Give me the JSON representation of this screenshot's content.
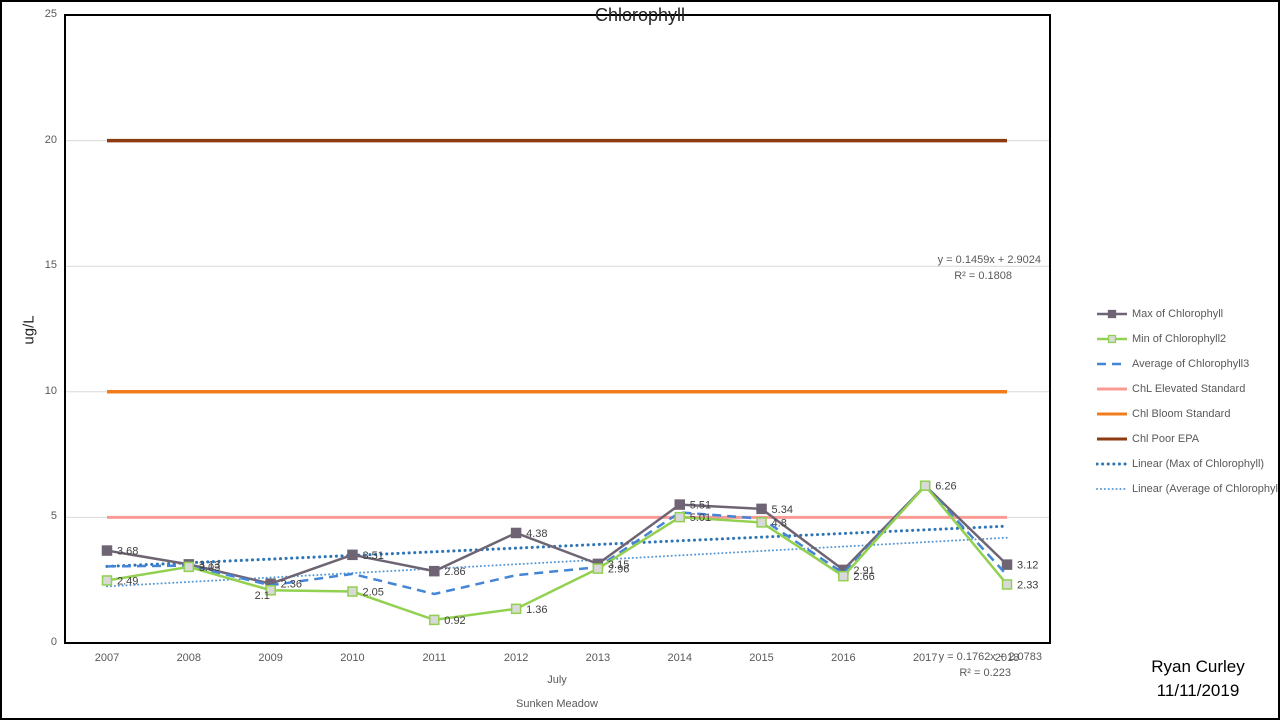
{
  "title": "Chlorophyll",
  "y_axis": {
    "title": "ug/L"
  },
  "x_axis": {
    "group_label": "July",
    "axis_title": "Sunken Meadow"
  },
  "annotations": {
    "max_trend_eq": "y = 0.1459x + 2.9024",
    "max_trend_r2": "R² = 0.1808",
    "avg_trend_eq": "y = 0.1762x + 2.0783",
    "avg_trend_r2": "R² = 0.223"
  },
  "signature": {
    "name": "Ryan Curley",
    "date": "11/11/2019"
  },
  "colors": {
    "max_series": "#6F6473",
    "min_series": "#92D050",
    "avg_series": "#4585D6",
    "elevated_standard": "#F99B94",
    "bloom_standard": "#F07C1D",
    "poor_epa_standard": "#8C3A10",
    "linear_max": "#2E75B6",
    "linear_avg": "#5B9BD5",
    "gridline": "#D9D9D9",
    "axis_text": "#595959",
    "data_label": "#404040"
  },
  "legend": {
    "items": [
      {
        "label": "Max of Chlorophyll",
        "color": "#6F6473",
        "style": "solid-marker",
        "marker_fill": "#6F6473"
      },
      {
        "label": "Min of Chlorophyll2",
        "color": "#92D050",
        "style": "solid-marker",
        "marker_fill": "#D9D9D9"
      },
      {
        "label": "Average of Chlorophyll3",
        "color": "#4585D6",
        "style": "dash"
      },
      {
        "label": "ChL Elevated Standard",
        "color": "#F99B94",
        "style": "solid"
      },
      {
        "label": "Chl Bloom Standard",
        "color": "#F07C1D",
        "style": "solid"
      },
      {
        "label": "Chl Poor EPA",
        "color": "#8C3A10",
        "style": "solid"
      },
      {
        "label": "Linear (Max of Chlorophyll)",
        "color": "#2E75B6",
        "style": "dot-bold"
      },
      {
        "label": "Linear (Average of Chlorophyll3)",
        "color": "#5B9BD5",
        "style": "dot-fine"
      }
    ]
  },
  "chart_data": {
    "type": "line",
    "title": "Chlorophyll",
    "ylabel": "ug/L",
    "ylim": [
      0,
      25
    ],
    "yticks": [
      0,
      5,
      10,
      15,
      20,
      25
    ],
    "gridlines": [
      5,
      10,
      15,
      20
    ],
    "categories": [
      "2007",
      "2008",
      "2009",
      "2010",
      "2011",
      "2012",
      "2013",
      "2014",
      "2015",
      "2016",
      "2017",
      "2018"
    ],
    "series": [
      {
        "name": "Max of Chlorophyll",
        "color": "#6F6473",
        "style": "solid-marker",
        "marker_fill": "#6F6473",
        "values": [
          3.68,
          3.13,
          2.36,
          3.51,
          2.86,
          4.38,
          3.15,
          5.51,
          5.34,
          2.91,
          6.26,
          3.12
        ],
        "labels": [
          "3.68",
          "3.13",
          "2.36",
          "3.51",
          "2.86",
          "4.38",
          "3.15",
          "5.51",
          "5.34",
          "2.91",
          "6.26",
          "3.12"
        ]
      },
      {
        "name": "Average of Chlorophyll3",
        "color": "#4585D6",
        "style": "dash",
        "marker_fill": null,
        "values": [
          3.05,
          3.08,
          2.3,
          2.75,
          1.95,
          2.7,
          3.02,
          5.2,
          4.95,
          2.78,
          6.26,
          2.7
        ],
        "labels": null
      },
      {
        "name": "Min of Chlorophyll2",
        "color": "#92D050",
        "style": "solid-marker",
        "marker_fill": "#D9D9D9",
        "values": [
          2.49,
          3.03,
          2.1,
          2.05,
          0.92,
          1.36,
          2.96,
          5.01,
          4.8,
          2.66,
          6.26,
          2.33
        ],
        "labels": [
          "2.49",
          "3.03",
          "2.1",
          "2.05",
          "0.92",
          "1.36",
          "2.96",
          "5.01",
          "4.8",
          "2.66",
          null,
          "2.33"
        ]
      }
    ],
    "standards": [
      {
        "name": "ChL Elevated Standard",
        "value": 5,
        "color": "#F99B94",
        "width": 3
      },
      {
        "name": "Chl Bloom Standard",
        "value": 10,
        "color": "#F07C1D",
        "width": 3.5
      },
      {
        "name": "Chl Poor EPA",
        "value": 20,
        "color": "#8C3A10",
        "width": 3.5
      }
    ],
    "trendlines": [
      {
        "name": "Linear (Max of Chlorophyll)",
        "slope": 0.1459,
        "intercept": 2.9024,
        "r2": 0.1808,
        "color": "#2E75B6",
        "style": "dot-bold"
      },
      {
        "name": "Linear (Average of Chlorophyll3)",
        "slope": 0.1762,
        "intercept": 2.0783,
        "r2": 0.223,
        "color": "#5B9BD5",
        "style": "dot-fine"
      }
    ],
    "legend_position": "right",
    "grid": true
  }
}
